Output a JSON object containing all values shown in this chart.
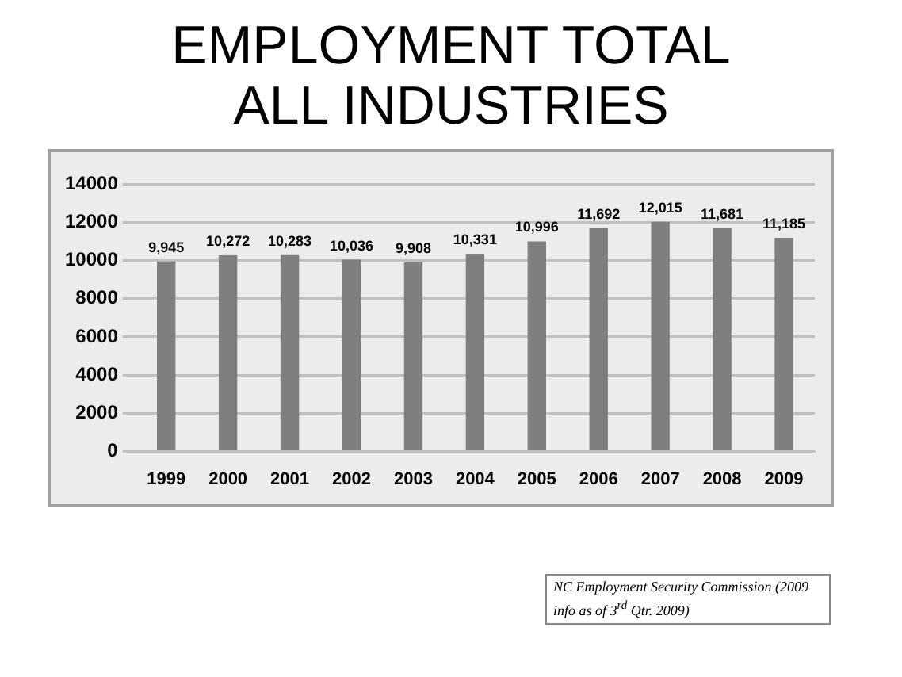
{
  "chart_data": {
    "type": "bar",
    "title": "EMPLOYMENT TOTAL\nALL INDUSTRIES",
    "categories": [
      "1999",
      "2000",
      "2001",
      "2002",
      "2003",
      "2004",
      "2005",
      "2006",
      "2007",
      "2008",
      "2009"
    ],
    "values": [
      9945,
      10272,
      10283,
      10036,
      9908,
      10331,
      10996,
      11692,
      12015,
      11681,
      11185
    ],
    "value_labels": [
      "9,945",
      "10,272",
      "10,283",
      "10,036",
      "9,908",
      "10,331",
      "10,996",
      "11,692",
      "12,015",
      "11,681",
      "11,185"
    ],
    "color": "#7f7f7f",
    "ylim": [
      0,
      14000
    ],
    "yticks": [
      0,
      2000,
      4000,
      6000,
      8000,
      10000,
      12000,
      14000
    ],
    "grid": "y",
    "annotations": [
      "NC Employment Security Commission  (2009 info as of 3$^{rd}$ Qtr. 2009)"
    ]
  }
}
